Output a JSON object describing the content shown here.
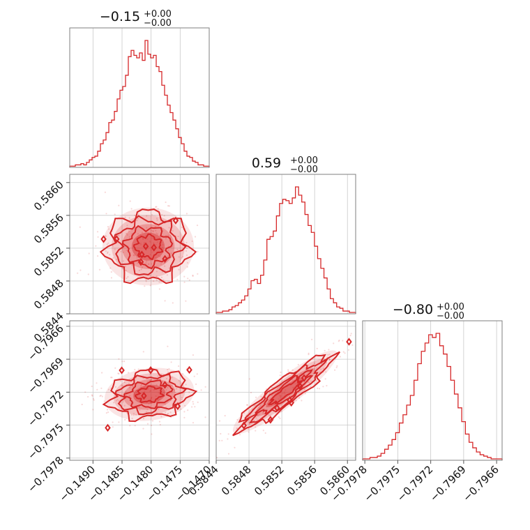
{
  "chart_data": {
    "type": "corner",
    "color": "#d62728",
    "params": [
      {
        "id": "p0",
        "title": "−0.15",
        "title_sup": "+0.00",
        "title_sub": "−0.00",
        "range": [
          -0.1494,
          -0.147
        ],
        "ticks": [
          -0.149,
          -0.1485,
          -0.148,
          -0.1475,
          -0.147
        ],
        "tick_labels": [
          "−0.1490",
          "−0.1485",
          "−0.1480",
          "−0.1475",
          "−0.1470"
        ],
        "center": -0.148,
        "hist": [
          1,
          1,
          2,
          2,
          3,
          2,
          4,
          6,
          8,
          9,
          13,
          19,
          22,
          28,
          36,
          38,
          45,
          55,
          62,
          65,
          74,
          89,
          94,
          90,
          88,
          92,
          86,
          102,
          91,
          88,
          90,
          81,
          77,
          66,
          58,
          50,
          44,
          38,
          31,
          24,
          19,
          13,
          9,
          8,
          5,
          4,
          2,
          2,
          1,
          1
        ]
      },
      {
        "id": "p1",
        "title": "0.59",
        "title_sup": "+0.00",
        "title_sub": "−0.00",
        "range": [
          0.5844,
          0.5861
        ],
        "ticks": [
          0.5844,
          0.5848,
          0.5852,
          0.5856,
          0.586
        ],
        "tick_labels": [
          "0.5844",
          "0.5848",
          "0.5852",
          "0.5856",
          "0.5860"
        ],
        "center": 0.58525,
        "hist": [
          1,
          1,
          2,
          2,
          3,
          5,
          6,
          8,
          10,
          13,
          18,
          24,
          25,
          22,
          28,
          39,
          54,
          56,
          60,
          71,
          80,
          83,
          82,
          80,
          84,
          92,
          86,
          81,
          72,
          64,
          59,
          49,
          40,
          33,
          26,
          18,
          11,
          8,
          5,
          4,
          2,
          2,
          1,
          1
        ]
      },
      {
        "id": "p2",
        "title": "−0.80",
        "title_sup": "+0.00",
        "title_sub": "−0.00",
        "range": [
          -0.79782,
          -0.79655
        ],
        "ticks": [
          -0.7978,
          -0.7975,
          -0.7972,
          -0.7969,
          -0.7966
        ],
        "tick_labels": [
          "−0.7978",
          "−0.7975",
          "−0.7972",
          "−0.7969",
          "−0.7966"
        ],
        "center": -0.79722,
        "hist": [
          1,
          1,
          2,
          2,
          3,
          5,
          8,
          11,
          15,
          20,
          27,
          33,
          40,
          47,
          58,
          70,
          79,
          85,
          91,
          89,
          92,
          83,
          77,
          68,
          58,
          48,
          38,
          28,
          19,
          13,
          9,
          6,
          4,
          3,
          2,
          1,
          1,
          1
        ]
      }
    ],
    "pairs": [
      {
        "row": 1,
        "col": 0,
        "x": "p0",
        "y": "p1",
        "correlation": 0.0
      },
      {
        "row": 2,
        "col": 0,
        "x": "p0",
        "y": "p2",
        "correlation": -0.1
      },
      {
        "row": 2,
        "col": 1,
        "x": "p1",
        "y": "p2",
        "correlation": 0.92
      }
    ],
    "grid": true
  }
}
